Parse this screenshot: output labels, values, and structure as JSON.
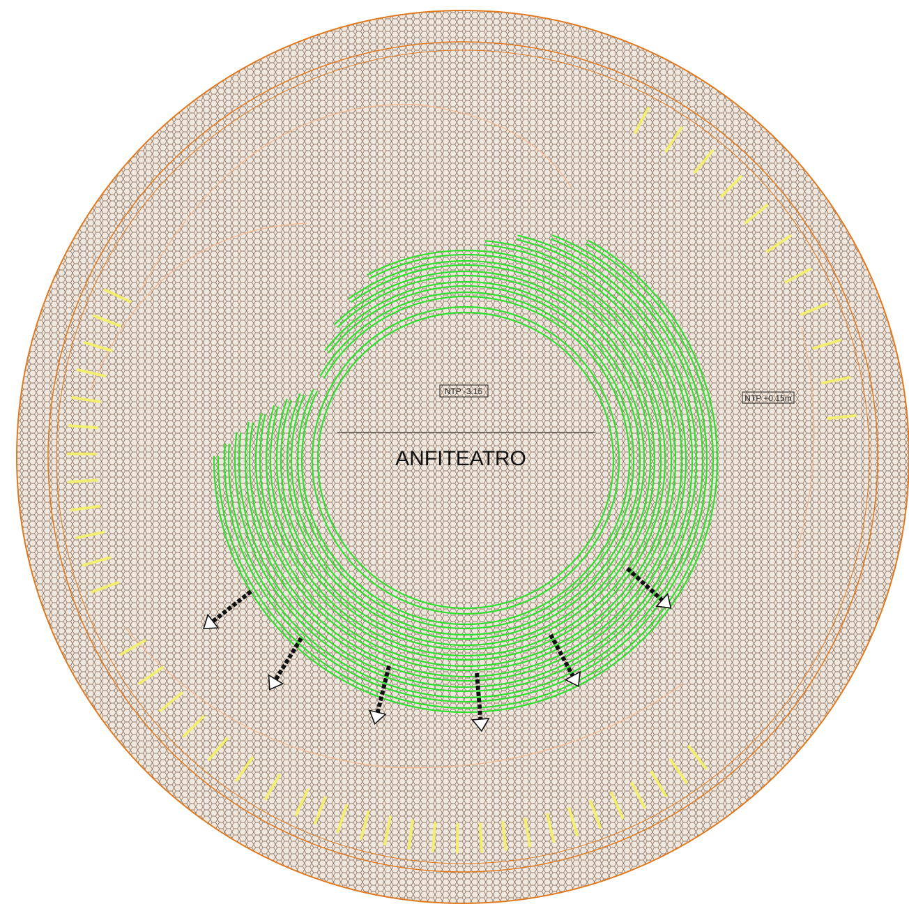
{
  "labels": {
    "ntp_center": "NTP -3.15",
    "ntp_right": "NTP +0.15m",
    "title": "ANFITEATRO"
  }
}
